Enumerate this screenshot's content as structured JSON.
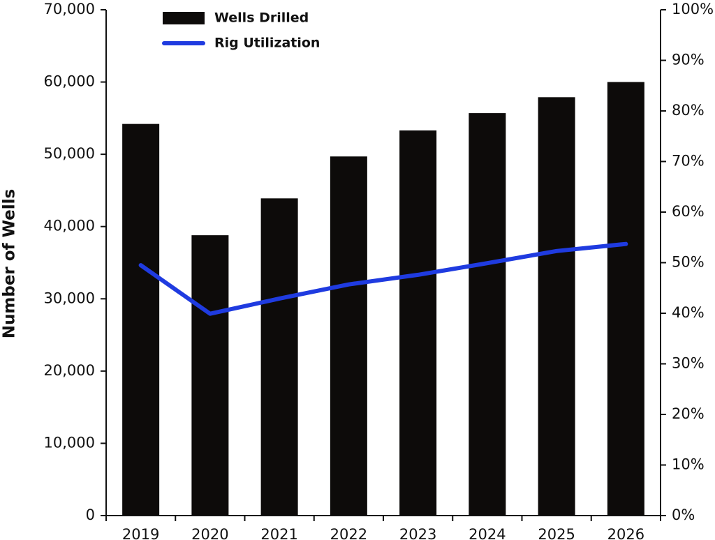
{
  "chart_data": {
    "type": "bar",
    "y_label": "Number of Wells",
    "categories": [
      "2019",
      "2020",
      "2021",
      "2022",
      "2023",
      "2024",
      "2025",
      "2026"
    ],
    "series": [
      {
        "name": "Wells Drilled",
        "type": "bar",
        "color": "#0d0b0a",
        "values": [
          54200,
          38800,
          43900,
          49700,
          53300,
          55700,
          57900,
          60000
        ]
      },
      {
        "name": "Rig Utilization",
        "type": "line",
        "axis": "y2",
        "color": "#1f3be0",
        "values": [
          49.5,
          39.9,
          42.9,
          45.7,
          47.6,
          49.9,
          52.3,
          53.7
        ]
      }
    ],
    "ylim": [
      0,
      70000
    ],
    "yticks": [
      0,
      {
        "value": 10000,
        "label": "10,000"
      },
      {
        "value": 20000,
        "label": "20,000"
      },
      {
        "value": 30000,
        "label": "30,000"
      },
      {
        "value": 40000,
        "label": "40,000"
      },
      {
        "value": 50000,
        "label": "50,000"
      },
      {
        "value": 60000,
        "label": "60,000"
      },
      {
        "value": 70000,
        "label": "70,000"
      }
    ],
    "y2lim": [
      0,
      100
    ],
    "y2ticks": [
      {
        "value": 0,
        "label": "0%"
      },
      {
        "value": 10,
        "label": "10%"
      },
      {
        "value": 20,
        "label": "20%"
      },
      {
        "value": 30,
        "label": "30%"
      },
      {
        "value": 40,
        "label": "40%"
      },
      {
        "value": 50,
        "label": "50%"
      },
      {
        "value": 60,
        "label": "60%"
      },
      {
        "value": 70,
        "label": "70%"
      },
      {
        "value": 80,
        "label": "80%"
      },
      {
        "value": 90,
        "label": "90%"
      },
      {
        "value": 100,
        "label": "100%"
      }
    ],
    "grid": false
  }
}
